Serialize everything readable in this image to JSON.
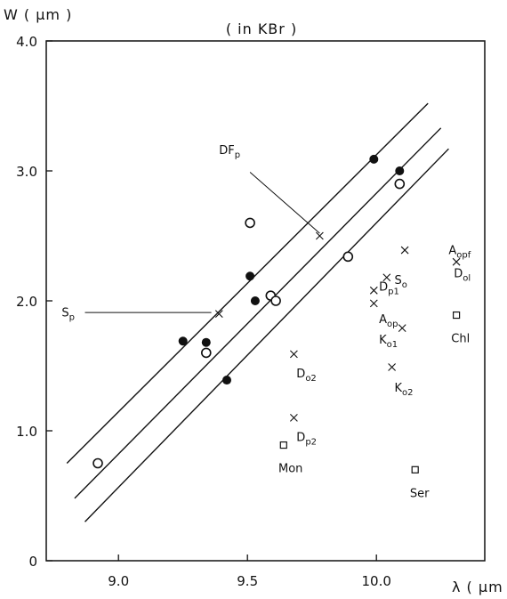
{
  "chart_data": {
    "type": "scatter",
    "title": "( in KBr )",
    "ylabel": "W ( μm )",
    "xlabel": "λ ( μm",
    "xlim": [
      8.72,
      10.42
    ],
    "ylim": [
      0,
      4.0
    ],
    "xticks": [
      "9.0",
      "9.5",
      "10.0"
    ],
    "xtick_values": [
      9.0,
      9.5,
      10.0
    ],
    "yticks": [
      "0",
      "1.0",
      "2.0",
      "3.0",
      "4.0"
    ],
    "ytick_values": [
      0,
      1.0,
      2.0,
      3.0,
      4.0
    ],
    "grid": false,
    "lines": [
      {
        "x": [
          8.8,
          10.2
        ],
        "y": [
          0.75,
          3.52
        ]
      },
      {
        "x": [
          8.83,
          10.25
        ],
        "y": [
          0.48,
          3.33
        ]
      },
      {
        "x": [
          8.87,
          10.28
        ],
        "y": [
          0.3,
          3.17
        ]
      }
    ],
    "series": [
      {
        "marker": "filled-circle",
        "points": [
          [
            9.25,
            1.69
          ],
          [
            9.34,
            1.68
          ],
          [
            9.42,
            1.39
          ],
          [
            9.51,
            2.19
          ],
          [
            9.53,
            2.0
          ],
          [
            9.99,
            3.09
          ],
          [
            10.09,
            3.0
          ]
        ]
      },
      {
        "marker": "open-circle",
        "points": [
          [
            8.92,
            0.75
          ],
          [
            9.34,
            1.6
          ],
          [
            9.51,
            2.6
          ],
          [
            9.59,
            2.04
          ],
          [
            9.61,
            2.0
          ],
          [
            9.89,
            2.34
          ],
          [
            10.09,
            2.9
          ]
        ]
      },
      {
        "marker": "cross",
        "points": [
          [
            9.78,
            2.5
          ],
          [
            9.39,
            1.9
          ],
          [
            9.68,
            1.59
          ],
          [
            9.68,
            1.1
          ],
          [
            9.99,
            2.08
          ],
          [
            9.99,
            1.98
          ],
          [
            10.04,
            2.18
          ],
          [
            10.11,
            2.39
          ],
          [
            10.1,
            1.79
          ],
          [
            10.06,
            1.49
          ],
          [
            10.31,
            2.3
          ]
        ]
      },
      {
        "marker": "open-square",
        "points": [
          [
            9.64,
            0.89
          ],
          [
            10.15,
            0.7
          ],
          [
            10.31,
            1.89
          ]
        ]
      }
    ],
    "annotations": [
      {
        "text": "DF",
        "sub": "p",
        "x": 9.39,
        "y": 3.13,
        "leader": [
          9.51,
          2.99,
          9.78,
          2.52
        ]
      },
      {
        "text": "S",
        "sub": "p",
        "x": 8.78,
        "y": 1.88,
        "leader": [
          8.87,
          1.91,
          9.36,
          1.91
        ]
      },
      {
        "text": "D",
        "sub": "o2",
        "x": 9.69,
        "y": 1.41
      },
      {
        "text": "D",
        "sub": "p2",
        "x": 9.69,
        "y": 0.92
      },
      {
        "text": "Mon",
        "x": 9.62,
        "y": 0.68
      },
      {
        "text": "D",
        "sub": "p1",
        "x": 10.01,
        "y": 2.08
      },
      {
        "text": "S",
        "sub": "o",
        "x": 10.07,
        "y": 2.13
      },
      {
        "text": "A",
        "sub": "op",
        "x": 10.01,
        "y": 1.83
      },
      {
        "text": "K",
        "sub": "o1",
        "x": 10.01,
        "y": 1.67
      },
      {
        "text": "K",
        "sub": "o2",
        "x": 10.07,
        "y": 1.3
      },
      {
        "text": "A",
        "sub": "opf",
        "x": 10.28,
        "y": 2.36
      },
      {
        "text": "D",
        "sub": "ol",
        "x": 10.3,
        "y": 2.18
      },
      {
        "text": "Chl",
        "x": 10.29,
        "y": 1.68
      },
      {
        "text": "Ser",
        "x": 10.13,
        "y": 0.49
      }
    ]
  }
}
